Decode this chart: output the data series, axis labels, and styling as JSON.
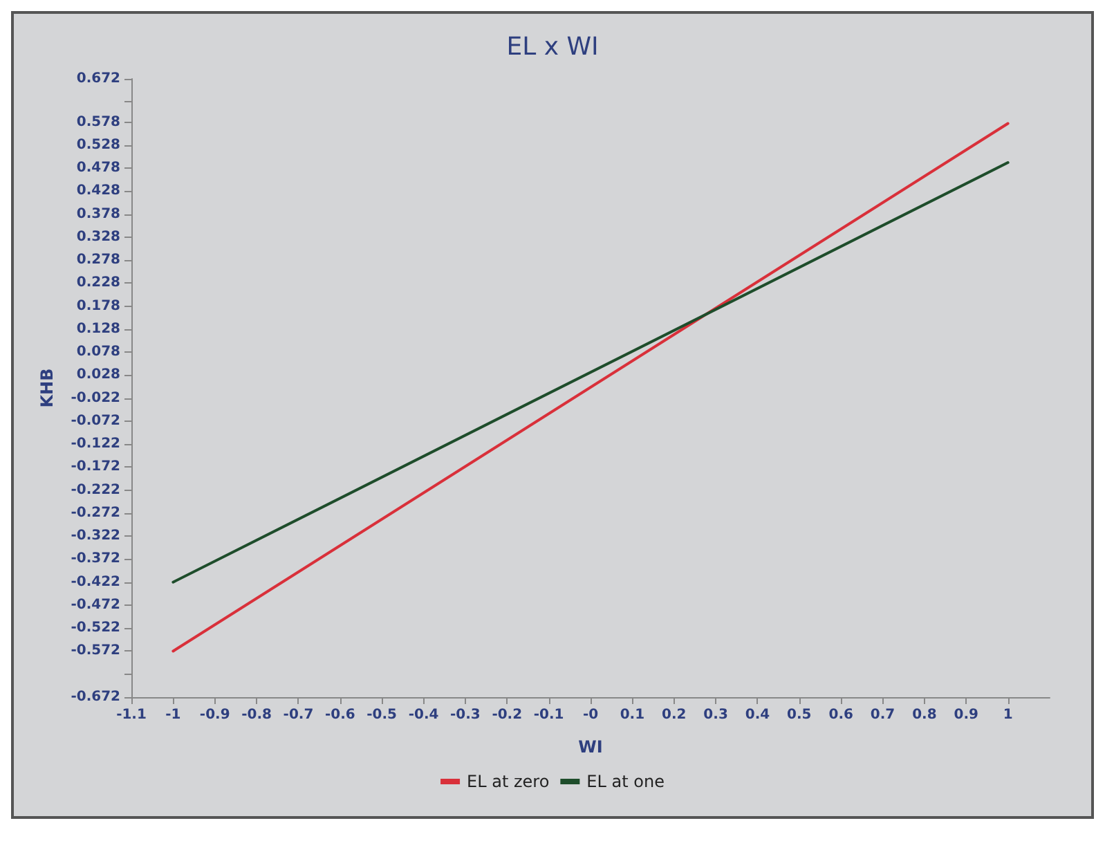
{
  "chart_data": {
    "type": "line",
    "title": "EL x WI",
    "xlabel": "WI",
    "ylabel": "KHB",
    "x": [
      -1,
      1
    ],
    "series": [
      {
        "name": "EL at zero",
        "color": "#d9303a",
        "values": [
          -0.572,
          0.575
        ]
      },
      {
        "name": "EL at one",
        "color": "#1e4d2b",
        "values": [
          -0.422,
          0.49
        ]
      }
    ],
    "xlim": [
      -1.1,
      1.1
    ],
    "xticks": [
      -1.1,
      -1,
      -0.9,
      -0.8,
      -0.7,
      -0.6,
      -0.5,
      -0.4,
      -0.3,
      -0.2,
      -0.1,
      {
        "value": 0,
        "label": "-0"
      },
      0.1,
      0.2,
      0.3,
      0.4,
      0.5,
      0.6,
      0.7,
      0.8,
      0.9,
      1
    ],
    "ylim": [
      -0.672,
      0.672
    ],
    "yticks": [
      -0.672,
      {
        "value": -0.622,
        "label": null
      },
      -0.572,
      -0.522,
      -0.472,
      -0.422,
      -0.372,
      -0.322,
      -0.272,
      -0.222,
      -0.172,
      -0.122,
      -0.072,
      -0.022,
      0.028,
      0.078,
      0.128,
      0.178,
      0.228,
      0.278,
      0.328,
      0.378,
      0.428,
      0.478,
      0.528,
      0.578,
      {
        "value": 0.622,
        "label": null
      },
      0.672
    ],
    "grid": false,
    "legend": "bottom",
    "marker": "none",
    "line_style": "solid"
  }
}
